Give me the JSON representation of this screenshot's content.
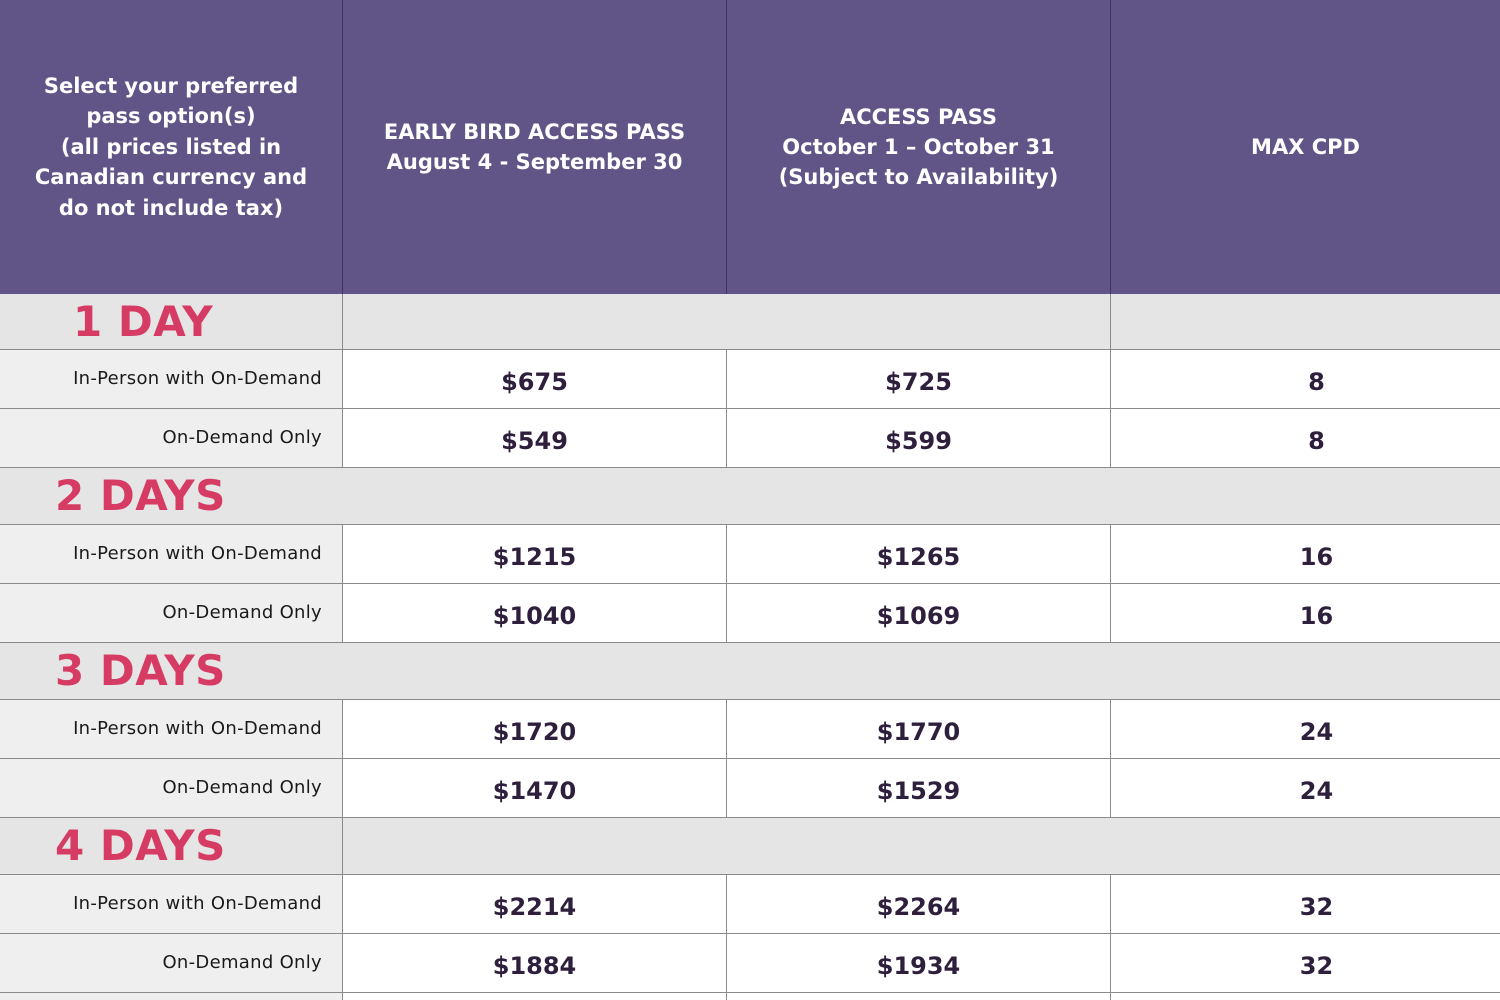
{
  "headers": {
    "option_col": "Select your preferred\npass option(s)\n(all prices listed in\nCanadian currency and\ndo not include tax)",
    "early_bird": "EARLY BIRD ACCESS PASS\nAugust 4 - September 30",
    "access_pass": "ACCESS PASS\nOctober 1 – October 31\n(Subject to Availability)",
    "max_cpd": "MAX CPD"
  },
  "sections": [
    {
      "title": "1 DAY",
      "rows": [
        {
          "label": "In-Person with On-Demand",
          "early_bird": "$675",
          "access": "$725",
          "cpd": "8"
        },
        {
          "label": "On-Demand Only",
          "early_bird": "$549",
          "access": "$599",
          "cpd": "8"
        }
      ]
    },
    {
      "title": "2 DAYS",
      "rows": [
        {
          "label": "In-Person with On-Demand",
          "early_bird": "$1215",
          "access": "$1265",
          "cpd": "16"
        },
        {
          "label": "On-Demand Only",
          "early_bird": "$1040",
          "access": "$1069",
          "cpd": "16"
        }
      ]
    },
    {
      "title": "3 DAYS",
      "rows": [
        {
          "label": "In-Person with On-Demand",
          "early_bird": "$1720",
          "access": "$1770",
          "cpd": "24"
        },
        {
          "label": "On-Demand Only",
          "early_bird": "$1470",
          "access": "$1529",
          "cpd": "24"
        }
      ]
    },
    {
      "title": "4 DAYS",
      "rows": [
        {
          "label": "In-Person with On-Demand",
          "early_bird": "$2214",
          "access": "$2264",
          "cpd": "32"
        },
        {
          "label": "On-Demand Only",
          "early_bird": "$1884",
          "access": "$1934",
          "cpd": "32"
        }
      ]
    }
  ],
  "colors": {
    "header_bg": "#615587",
    "section_title": "#d63b64",
    "section_bg": "#e5e5e5",
    "price_text": "#2e1f3d"
  }
}
